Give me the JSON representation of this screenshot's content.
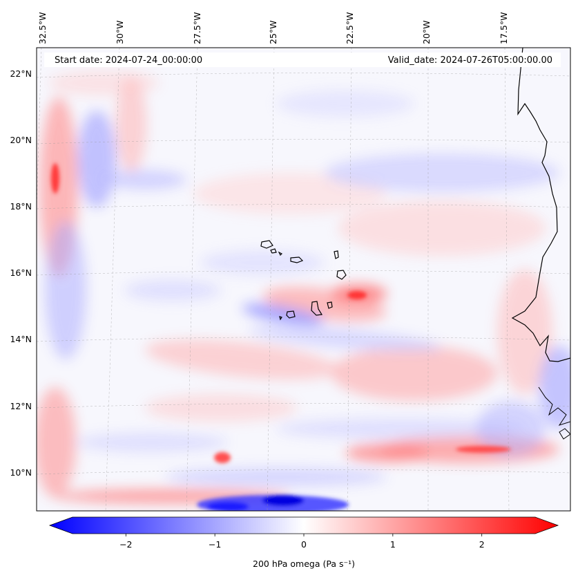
{
  "header": {
    "start_date": "Start date: 2024-07-24_00:00:00",
    "valid_date": "Valid_date: 2024-07-26T05:00:00.00"
  },
  "map": {
    "projection": "lambert conformal",
    "gridlines": true,
    "lon_labels": [
      "32.5°W",
      "30°W",
      "27.5°W",
      "25°W",
      "22.5°W",
      "20°W",
      "17.5°W"
    ],
    "lat_labels": [
      "22°N",
      "20°N",
      "18°N",
      "16°N",
      "14°N",
      "12°N",
      "10°N"
    ],
    "features": [
      "West African coastline",
      "Cape Verde islands"
    ]
  },
  "colorbar": {
    "label": "200 hPa omega (Pa s⁻¹)",
    "ticks": [
      "−2",
      "−1",
      "0",
      "1",
      "2"
    ],
    "tick_values": [
      -2,
      -1,
      0,
      1,
      2
    ],
    "range": [
      -2.6,
      2.6
    ],
    "colormap": "bwr",
    "colors": {
      "negative": "#0000ff",
      "zero": "#ffffff",
      "positive": "#ff0000"
    }
  }
}
